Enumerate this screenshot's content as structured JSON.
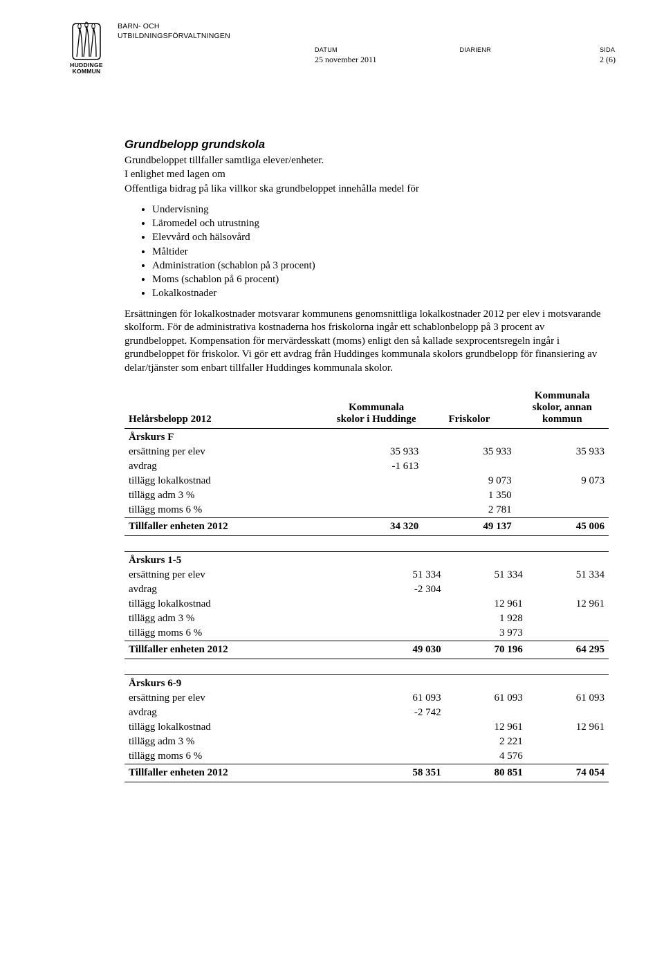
{
  "header": {
    "dept_line1": "BARN- OCH",
    "dept_line2": "UTBILDNINGSFÖRVALTNINGEN",
    "logo_line1": "HUDDINGE",
    "logo_line2": "KOMMUN",
    "meta": {
      "datum_label": "DATUM",
      "datum_value": "25 november 2011",
      "diarienr_label": "DIARIENR",
      "diarienr_value": "",
      "sida_label": "SIDA",
      "sida_value": "2 (6)"
    }
  },
  "section": {
    "title": "Grundbelopp grundskola",
    "intro1": "Grundbeloppet tillfaller samtliga elever/enheter.",
    "intro2": "I enlighet med lagen om",
    "intro3": "Offentliga bidrag på lika villkor ska grundbeloppet innehålla medel för",
    "bullets": [
      "Undervisning",
      "Läromedel och utrustning",
      "Elevvård och hälsovård",
      "Måltider",
      "Administration (schablon på 3 procent)",
      "Moms (schablon på 6 procent)",
      "Lokalkostnader"
    ],
    "after": "Ersättningen för lokalkostnader motsvarar kommunens genomsnittliga lokalkostnader 2012 per elev i motsvarande skolform. För de administrativa kostnaderna hos friskolorna ingår ett schablonbelopp på 3 procent av grundbeloppet. Kompensation för mervärdesskatt (moms) enligt den så kallade sexprocentsregeln ingår i grundbeloppet för friskolor. Vi gör ett avdrag från Huddinges kommunala skolors grundbelopp för finansiering av delar/tjänster som enbart tillfaller Huddinges kommunala skolor."
  },
  "tables": {
    "headers": {
      "c0": "Helårsbelopp 2012",
      "c1": "Kommunala skolor i Huddinge",
      "c2": "Friskolor",
      "c3": "Kommunala skolor, annan kommun"
    },
    "row_labels": {
      "ersattning": "ersättning per elev",
      "avdrag": "avdrag",
      "lokal": "tillägg lokalkostnad",
      "adm": "tillägg adm 3 %",
      "moms": "tillägg moms 6 %",
      "total": "Tillfaller enheten 2012"
    },
    "groups": [
      {
        "name": "Årskurs F",
        "ersattning": [
          "35 933",
          "35 933",
          "35 933"
        ],
        "avdrag": [
          "-1 613",
          "",
          ""
        ],
        "lokal": [
          "",
          "9 073",
          "9 073"
        ],
        "adm": [
          "",
          "1 350",
          ""
        ],
        "moms": [
          "",
          "2 781",
          ""
        ],
        "total": [
          "34 320",
          "49 137",
          "45 006"
        ]
      },
      {
        "name": "Årskurs 1-5",
        "ersattning": [
          "51 334",
          "51 334",
          "51 334"
        ],
        "avdrag": [
          "-2 304",
          "",
          ""
        ],
        "lokal": [
          "",
          "12 961",
          "12 961"
        ],
        "adm": [
          "",
          "1 928",
          ""
        ],
        "moms": [
          "",
          "3 973",
          ""
        ],
        "total": [
          "49 030",
          "70 196",
          "64 295"
        ]
      },
      {
        "name": "Årskurs 6-9",
        "ersattning": [
          "61 093",
          "61 093",
          "61 093"
        ],
        "avdrag": [
          "-2 742",
          "",
          ""
        ],
        "lokal": [
          "",
          "12 961",
          "12 961"
        ],
        "adm": [
          "",
          "2 221",
          ""
        ],
        "moms": [
          "",
          "4 576",
          ""
        ],
        "total": [
          "58 351",
          "80 851",
          "74 054"
        ]
      }
    ]
  }
}
